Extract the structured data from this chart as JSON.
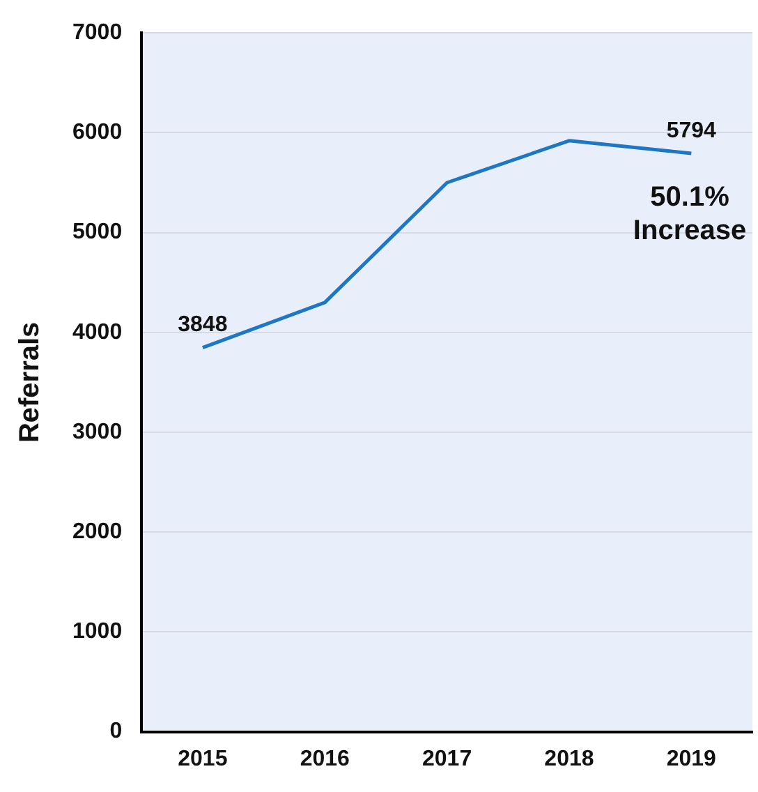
{
  "chart_data": {
    "type": "line",
    "ylabel": "Referrals",
    "categories": [
      "2015",
      "2016",
      "2017",
      "2018",
      "2019"
    ],
    "series": [
      {
        "color": "#1f77c4",
        "values": [
          3848,
          4300,
          5500,
          5920,
          5794
        ],
        "value_labels": [
          "3848",
          null,
          null,
          null,
          "5794"
        ]
      }
    ],
    "annotations": [
      "50.1% Increase"
    ],
    "ylim": [
      0,
      7000
    ],
    "yticks": [
      0,
      1000,
      2000,
      3000,
      4000,
      5000,
      6000,
      7000
    ],
    "grid": "y",
    "legend": false,
    "marker": "none"
  }
}
